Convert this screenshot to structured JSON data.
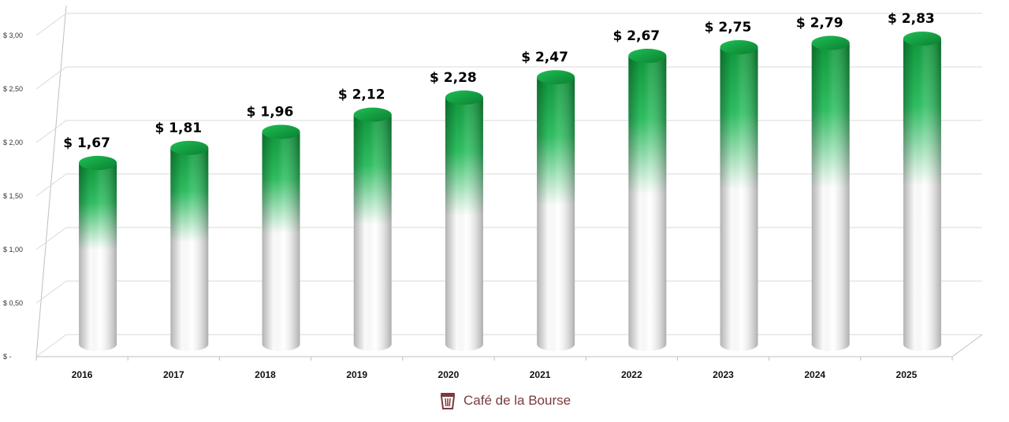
{
  "chart_data": {
    "type": "bar",
    "categories": [
      "2016",
      "2017",
      "2018",
      "2019",
      "2020",
      "2021",
      "2022",
      "2023",
      "2024",
      "2025"
    ],
    "values": [
      1.67,
      1.81,
      1.96,
      2.12,
      2.28,
      2.47,
      2.67,
      2.75,
      2.79,
      2.83
    ],
    "value_labels": [
      "$ 1,67",
      "$ 1,81",
      "$ 1,96",
      "$ 2,12",
      "$ 2,28",
      "$ 2,47",
      "$ 2,67",
      "$ 2,75",
      "$ 2,79",
      "$ 2,83"
    ],
    "y_ticks": [
      0,
      0.5,
      1,
      1.5,
      2,
      2.5,
      3
    ],
    "y_tick_labels": [
      "$ -",
      "$ 0,50",
      "$ 1,00",
      "$ 1,50",
      "$ 2,00",
      "$ 2,50",
      "$ 3,00"
    ],
    "ylim": [
      0,
      3.0
    ],
    "title": "",
    "xlabel": "",
    "ylabel": "",
    "grid": true,
    "legend": "none",
    "bar_style": "3d-cylinder",
    "colors": {
      "bar_top": "#0f9a3c",
      "bar_bottom": "#ffffff",
      "grid": "#d9d9d9",
      "axis": "#bfbfbf"
    }
  },
  "watermark": {
    "text": "Café de la Bourse",
    "icon": "coffee-cup-icon",
    "color": "#7a3b3b"
  }
}
